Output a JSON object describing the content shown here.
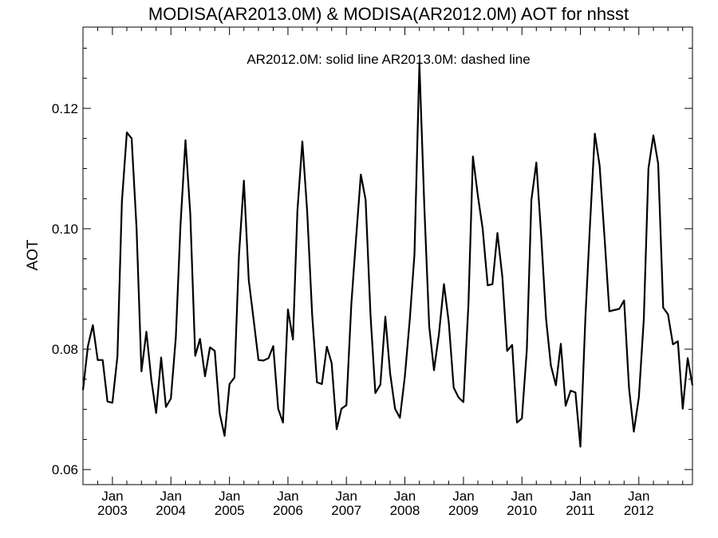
{
  "chart_data": {
    "type": "line",
    "title": "MODISA(AR2013.0M) & MODISA(AR2012.0M)  AOT for nhsst",
    "annotation": "AR2012.0M: solid line   AR2013.0M: dashed line",
    "xlabel": "",
    "ylabel": "AOT",
    "ylim": [
      0.0575,
      0.1335
    ],
    "xlim": [
      "2002-07-01",
      "2012-12-01"
    ],
    "yticks": [
      0.06,
      0.08,
      0.1,
      0.12
    ],
    "ytick_labels": [
      "0.06",
      "0.08",
      "0.10",
      "0.12"
    ],
    "xticks": [
      {
        "month": "Jan",
        "year": "2003",
        "date": "2003-01-01"
      },
      {
        "month": "Jan",
        "year": "2004",
        "date": "2004-01-01"
      },
      {
        "month": "Jan",
        "year": "2005",
        "date": "2005-01-01"
      },
      {
        "month": "Jan",
        "year": "2006",
        "date": "2006-01-01"
      },
      {
        "month": "Jan",
        "year": "2007",
        "date": "2007-01-01"
      },
      {
        "month": "Jan",
        "year": "2008",
        "date": "2008-01-01"
      },
      {
        "month": "Jan",
        "year": "2009",
        "date": "2009-01-01"
      },
      {
        "month": "Jan",
        "year": "2010",
        "date": "2010-01-01"
      },
      {
        "month": "Jan",
        "year": "2011",
        "date": "2011-01-01"
      },
      {
        "month": "Jan",
        "year": "2012",
        "date": "2012-01-01"
      }
    ],
    "grid": false,
    "series": [
      {
        "name": "AR2012.0M",
        "style": "solid",
        "color": "#000000",
        "x": [
          "2002-07",
          "2002-08",
          "2002-09",
          "2002-10",
          "2002-11",
          "2002-12",
          "2003-01",
          "2003-02",
          "2003-03",
          "2003-04",
          "2003-05",
          "2003-06",
          "2003-07",
          "2003-08",
          "2003-09",
          "2003-10",
          "2003-11",
          "2003-12",
          "2004-01",
          "2004-02",
          "2004-03",
          "2004-04",
          "2004-05",
          "2004-06",
          "2004-07",
          "2004-08",
          "2004-09",
          "2004-10",
          "2004-11",
          "2004-12",
          "2005-01",
          "2005-02",
          "2005-03",
          "2005-04",
          "2005-05",
          "2005-06",
          "2005-07",
          "2005-08",
          "2005-09",
          "2005-10",
          "2005-11",
          "2005-12",
          "2006-01",
          "2006-02",
          "2006-03",
          "2006-04",
          "2006-05",
          "2006-06",
          "2006-07",
          "2006-08",
          "2006-09",
          "2006-10",
          "2006-11",
          "2006-12",
          "2007-01",
          "2007-02",
          "2007-03",
          "2007-04",
          "2007-05",
          "2007-06",
          "2007-07",
          "2007-08",
          "2007-09",
          "2007-10",
          "2007-11",
          "2007-12",
          "2008-01",
          "2008-02",
          "2008-03",
          "2008-04",
          "2008-05",
          "2008-06",
          "2008-07",
          "2008-08",
          "2008-09",
          "2008-10",
          "2008-11",
          "2008-12",
          "2009-01",
          "2009-02",
          "2009-03",
          "2009-04",
          "2009-05",
          "2009-06",
          "2009-07",
          "2009-08",
          "2009-09",
          "2009-10",
          "2009-11",
          "2009-12",
          "2010-01",
          "2010-02",
          "2010-03",
          "2010-04",
          "2010-05",
          "2010-06",
          "2010-07",
          "2010-08",
          "2010-09",
          "2010-10",
          "2010-11",
          "2010-12",
          "2011-01",
          "2011-02",
          "2011-03",
          "2011-04",
          "2011-05",
          "2011-06",
          "2011-07",
          "2011-08",
          "2011-09",
          "2011-10",
          "2011-11",
          "2011-12",
          "2012-01",
          "2012-02",
          "2012-03",
          "2012-04",
          "2012-05",
          "2012-06",
          "2012-07",
          "2012-08",
          "2012-09",
          "2012-10",
          "2012-11",
          "2012-12"
        ],
        "values": [
          0.0732,
          0.0805,
          0.084,
          0.0782,
          0.0782,
          0.0713,
          0.0711,
          0.0788,
          0.1045,
          0.116,
          0.115,
          0.1,
          0.0763,
          0.0829,
          0.0749,
          0.0694,
          0.0786,
          0.0704,
          0.0718,
          0.082,
          0.1005,
          0.1147,
          0.1025,
          0.0789,
          0.0817,
          0.0755,
          0.0803,
          0.0797,
          0.0693,
          0.0656,
          0.0742,
          0.0753,
          0.0955,
          0.108,
          0.0915,
          0.0848,
          0.0782,
          0.0781,
          0.0785,
          0.0805,
          0.0701,
          0.0678,
          0.0866,
          0.0816,
          0.103,
          0.1145,
          0.103,
          0.0857,
          0.0745,
          0.0742,
          0.0804,
          0.0777,
          0.0667,
          0.0701,
          0.0707,
          0.0875,
          0.098,
          0.109,
          0.1048,
          0.0855,
          0.0727,
          0.0741,
          0.0854,
          0.076,
          0.0701,
          0.0686,
          0.0755,
          0.085,
          0.0957,
          0.1275,
          0.104,
          0.0838,
          0.0765,
          0.0825,
          0.0908,
          0.0845,
          0.0736,
          0.072,
          0.0712,
          0.0875,
          0.112,
          0.1055,
          0.1,
          0.0906,
          0.0908,
          0.0993,
          0.092,
          0.0797,
          0.0807,
          0.0678,
          0.0685,
          0.08,
          0.1048,
          0.111,
          0.099,
          0.085,
          0.0773,
          0.074,
          0.0809,
          0.0706,
          0.0731,
          0.0728,
          0.0638,
          0.085,
          0.1,
          0.1158,
          0.1105,
          0.0985,
          0.0863,
          0.0865,
          0.0867,
          0.0881,
          0.0735,
          0.0663,
          0.072,
          0.085,
          0.11,
          0.1155,
          0.1108,
          0.0869,
          0.0858,
          0.0808,
          0.0813,
          0.0701,
          0.0785,
          0.074
        ]
      }
    ]
  }
}
